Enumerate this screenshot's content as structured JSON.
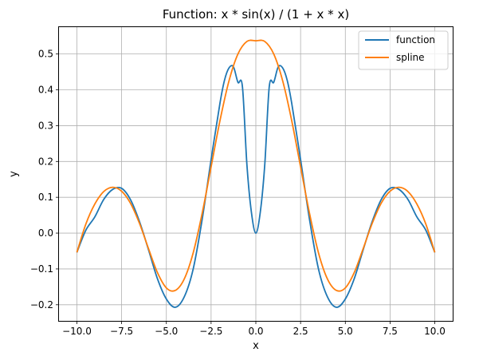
{
  "chart_data": {
    "type": "line",
    "title": "Function: x * sin(x) / (1 + x * x)",
    "xlabel": "x",
    "ylabel": "y",
    "xlim": [
      -11.0,
      11.0
    ],
    "ylim": [
      -0.245,
      0.575
    ],
    "xticks": [
      -10.0,
      -7.5,
      -5.0,
      -2.5,
      0.0,
      2.5,
      5.0,
      7.5,
      10.0
    ],
    "xtick_labels": [
      "−10.0",
      "−7.5",
      "−5.0",
      "−2.5",
      "0.0",
      "2.5",
      "5.0",
      "7.5",
      "10.0"
    ],
    "yticks": [
      -0.2,
      -0.1,
      0.0,
      0.1,
      0.2,
      0.3,
      0.4,
      0.5
    ],
    "ytick_labels": [
      "−0.2",
      "−0.1",
      "0.0",
      "0.1",
      "0.2",
      "0.3",
      "0.4",
      "0.5"
    ],
    "grid": true,
    "legend_position": "top-right",
    "series": [
      {
        "name": "function",
        "color": "#1f77b4",
        "x": [
          -10,
          -9.5,
          -9,
          -8.5,
          -8,
          -7.5,
          -7,
          -6.5,
          -6,
          -5.5,
          -5,
          -4.5,
          -4,
          -3.5,
          -3,
          -2.5,
          -2,
          -1.75,
          -1.5,
          -1.25,
          -1,
          -0.75,
          -0.5,
          -0.25,
          0,
          0.25,
          0.5,
          0.75,
          1,
          1.25,
          1.5,
          1.75,
          2,
          2.5,
          3,
          3.5,
          4,
          4.5,
          5,
          5.5,
          6,
          6.5,
          7,
          7.5,
          8,
          8.5,
          9,
          9.5,
          10
        ],
        "y": [
          -0.054,
          0.008,
          0.045,
          0.094,
          0.122,
          0.125,
          0.093,
          0.032,
          -0.046,
          -0.127,
          -0.184,
          -0.207,
          -0.178,
          -0.1,
          0.038,
          0.205,
          0.364,
          0.427,
          0.461,
          0.464,
          0.421,
          0.409,
          0.192,
          0.059,
          0.0,
          0.059,
          0.192,
          0.409,
          0.421,
          0.464,
          0.461,
          0.427,
          0.364,
          0.205,
          0.038,
          -0.1,
          -0.178,
          -0.207,
          -0.184,
          -0.127,
          -0.046,
          0.032,
          0.093,
          0.125,
          0.122,
          0.094,
          0.045,
          0.008,
          -0.054
        ]
      },
      {
        "name": "spline",
        "color": "#ff7f0e",
        "x": [
          -10,
          -9.5,
          -9,
          -8.5,
          -8,
          -7.5,
          -7,
          -6.5,
          -6,
          -5.5,
          -5,
          -4.5,
          -4,
          -3.5,
          -3,
          -2.5,
          -2,
          -1.5,
          -1,
          -0.5,
          0,
          0.5,
          1,
          1.5,
          2,
          2.5,
          3,
          3.5,
          4,
          4.5,
          5,
          5.5,
          6,
          6.5,
          7,
          7.5,
          8,
          8.5,
          9,
          9.5,
          10
        ],
        "y": [
          -0.054,
          0.025,
          0.081,
          0.116,
          0.128,
          0.117,
          0.083,
          0.027,
          -0.043,
          -0.11,
          -0.153,
          -0.16,
          -0.128,
          -0.055,
          0.055,
          0.185,
          0.315,
          0.425,
          0.5,
          0.535,
          0.537,
          0.535,
          0.5,
          0.425,
          0.315,
          0.185,
          0.055,
          -0.055,
          -0.128,
          -0.16,
          -0.153,
          -0.11,
          -0.043,
          0.027,
          0.083,
          0.117,
          0.128,
          0.116,
          0.081,
          0.025,
          -0.054
        ]
      }
    ]
  }
}
